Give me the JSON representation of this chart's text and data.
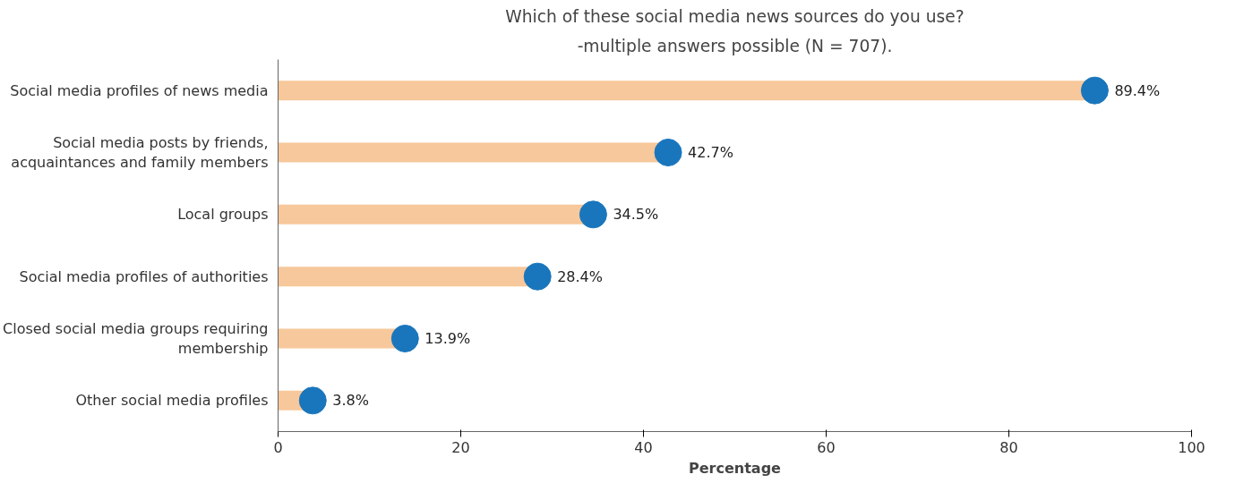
{
  "chart_data": {
    "type": "lollipop",
    "title": "Which of these social media news sources do you use?",
    "subtitle": "-multiple answers possible (N = 707).",
    "xlabel": "Percentage",
    "orientation": "horizontal",
    "categories": [
      "Social media profiles of news media",
      "Social media posts by friends, acquaintances and family members",
      "Local groups",
      "Social media profiles of authorities",
      "Closed social media groups requiring membership",
      "Other social media profiles"
    ],
    "series": [
      {
        "color": "#1a76bc",
        "values": [
          89.4,
          42.7,
          34.5,
          28.4,
          13.9,
          3.8
        ],
        "value_labels": [
          "89.4%",
          "42.7%",
          "34.5%",
          "28.4%",
          "13.9%",
          "3.8%"
        ]
      }
    ],
    "marker": "circle",
    "xlim": [
      0,
      100
    ],
    "xticks": [
      0,
      20,
      40,
      60,
      80,
      100
    ],
    "grid": false
  }
}
